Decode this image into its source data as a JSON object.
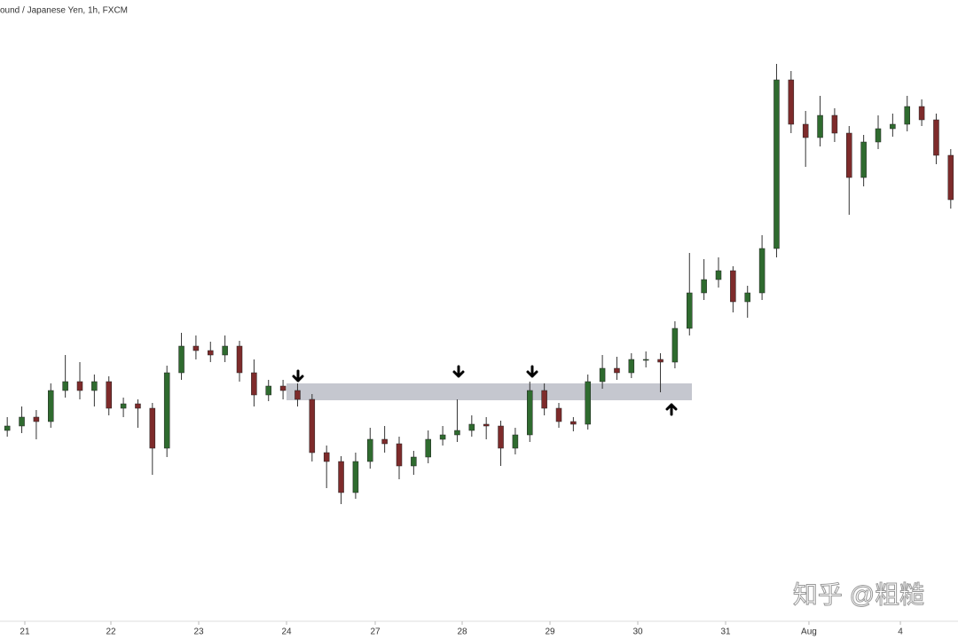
{
  "chart_data": {
    "type": "candlestick",
    "title": "ound / Japanese Yen, 1h, FXCM",
    "up_color": "#2f6b2f",
    "down_color": "#7e2b2b",
    "xlim": [
      -0.5,
      65.5
    ],
    "ylim": [
      0,
      720
    ],
    "xticks": [
      {
        "value": 1.21,
        "label": "21"
      },
      {
        "value": 7.14,
        "label": "22"
      },
      {
        "value": 13.19,
        "label": "23"
      },
      {
        "value": 19.24,
        "label": "24"
      },
      {
        "value": 25.35,
        "label": "27"
      },
      {
        "value": 31.34,
        "label": "28"
      },
      {
        "value": 37.39,
        "label": "29"
      },
      {
        "value": 43.44,
        "label": "30"
      },
      {
        "value": 49.49,
        "label": "31"
      },
      {
        "value": 55.23,
        "label": "Aug"
      },
      {
        "value": 61.53,
        "label": "4"
      }
    ],
    "zone": [
      269,
      288
    ],
    "ohlc": [
      [
        235,
        250,
        228,
        240
      ],
      [
        240,
        262,
        232,
        250
      ],
      [
        250,
        258,
        225,
        245
      ],
      [
        245,
        288,
        238,
        280
      ],
      [
        280,
        320,
        272,
        290
      ],
      [
        290,
        312,
        270,
        280
      ],
      [
        280,
        298,
        262,
        290
      ],
      [
        290,
        296,
        252,
        260
      ],
      [
        260,
        272,
        250,
        265
      ],
      [
        265,
        270,
        238,
        260
      ],
      [
        260,
        266,
        185,
        215
      ],
      [
        215,
        308,
        205,
        300
      ],
      [
        300,
        345,
        292,
        330
      ],
      [
        330,
        342,
        315,
        325
      ],
      [
        325,
        335,
        312,
        320
      ],
      [
        320,
        342,
        312,
        330
      ],
      [
        330,
        336,
        290,
        300
      ],
      [
        300,
        315,
        262,
        275
      ],
      [
        275,
        292,
        268,
        285
      ],
      [
        285,
        292,
        270,
        280
      ],
      [
        280,
        288,
        262,
        270
      ],
      [
        270,
        276,
        200,
        210
      ],
      [
        210,
        218,
        170,
        200
      ],
      [
        200,
        206,
        152,
        165
      ],
      [
        165,
        210,
        158,
        200
      ],
      [
        200,
        238,
        192,
        225
      ],
      [
        225,
        240,
        210,
        220
      ],
      [
        220,
        228,
        180,
        195
      ],
      [
        195,
        212,
        185,
        205
      ],
      [
        205,
        235,
        198,
        225
      ],
      [
        225,
        240,
        218,
        230
      ],
      [
        230,
        270,
        222,
        235
      ],
      [
        235,
        252,
        228,
        242
      ],
      [
        242,
        250,
        225,
        240
      ],
      [
        240,
        246,
        195,
        215
      ],
      [
        215,
        238,
        208,
        230
      ],
      [
        230,
        290,
        222,
        280
      ],
      [
        280,
        288,
        252,
        260
      ],
      [
        260,
        266,
        238,
        245
      ],
      [
        245,
        250,
        234,
        242
      ],
      [
        242,
        298,
        236,
        290
      ],
      [
        290,
        320,
        282,
        305
      ],
      [
        305,
        318,
        292,
        300
      ],
      [
        300,
        322,
        294,
        315
      ],
      [
        315,
        324,
        306,
        315
      ],
      [
        315,
        322,
        278,
        312
      ],
      [
        312,
        358,
        305,
        350
      ],
      [
        350,
        435,
        342,
        390
      ],
      [
        390,
        428,
        382,
        405
      ],
      [
        405,
        430,
        396,
        415
      ],
      [
        415,
        420,
        368,
        380
      ],
      [
        380,
        398,
        362,
        390
      ],
      [
        390,
        455,
        382,
        440
      ],
      [
        440,
        648,
        430,
        630
      ],
      [
        630,
        640,
        570,
        580
      ],
      [
        580,
        595,
        532,
        565
      ],
      [
        565,
        612,
        555,
        590
      ],
      [
        590,
        598,
        560,
        570
      ],
      [
        570,
        578,
        478,
        520
      ],
      [
        520,
        568,
        510,
        560
      ],
      [
        560,
        590,
        552,
        575
      ],
      [
        575,
        592,
        566,
        580
      ],
      [
        580,
        612,
        572,
        600
      ],
      [
        600,
        608,
        578,
        585
      ],
      [
        585,
        592,
        535,
        545
      ],
      [
        545,
        552,
        485,
        495
      ]
    ],
    "watermark": "知乎 @粗糙"
  }
}
